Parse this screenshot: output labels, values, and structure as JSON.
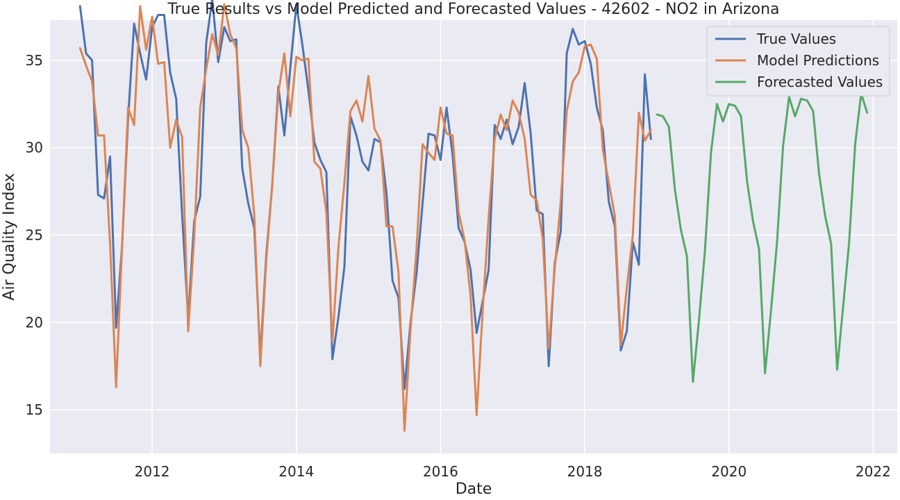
{
  "chart_data": {
    "type": "line",
    "title": "True Results vs Model Predicted and Forecasted Values - 42602 - NO2 in Arizona",
    "xlabel": "Date",
    "ylabel": "Air Quality Index",
    "xlim": [
      "2010-08-01",
      "2022-05-01"
    ],
    "ylim": [
      12.5,
      37.3
    ],
    "xticks": [
      "2012",
      "2014",
      "2016",
      "2018",
      "2020",
      "2022"
    ],
    "yticks": [
      15,
      20,
      25,
      30,
      35
    ],
    "grid": true,
    "legend_position": "top-right",
    "series": [
      {
        "name": "True Values",
        "color": "#4c72b0",
        "start": "2011-01",
        "values": [
          38.1,
          35.4,
          35.0,
          27.3,
          27.1,
          29.5,
          19.7,
          24.4,
          31.7,
          37.1,
          35.4,
          33.9,
          36.9,
          37.6,
          37.6,
          34.3,
          32.8,
          26.1,
          20.2,
          25.8,
          27.2,
          36.0,
          38.5,
          34.9,
          36.9,
          36.1,
          36.2,
          28.8,
          26.8,
          25.4,
          18.0,
          23.9,
          27.9,
          33.5,
          30.7,
          34.6,
          38.2,
          35.9,
          33.3,
          30.3,
          29.3,
          28.6,
          17.9,
          20.3,
          23.2,
          31.8,
          30.7,
          29.2,
          28.7,
          30.5,
          30.3,
          27.4,
          22.4,
          21.4,
          16.2,
          20.0,
          22.8,
          26.8,
          30.8,
          30.7,
          29.3,
          32.3,
          29.6,
          25.4,
          24.6,
          23.0,
          19.4,
          21.2,
          23.0,
          31.3,
          30.5,
          31.6,
          30.2,
          31.2,
          33.7,
          30.8,
          26.4,
          26.2,
          17.5,
          23.4,
          25.2,
          35.4,
          36.8,
          35.9,
          36.1,
          34.8,
          32.3,
          31.0,
          26.9,
          25.5,
          18.4,
          19.5,
          24.6,
          23.3,
          34.2,
          30.5
        ]
      },
      {
        "name": "Model Predictions",
        "color": "#dd8452",
        "start": "2011-01",
        "values": [
          35.7,
          34.7,
          33.8,
          30.7,
          30.7,
          24.5,
          16.3,
          24.4,
          32.3,
          31.3,
          38.1,
          35.6,
          37.5,
          34.8,
          34.9,
          30.0,
          31.6,
          30.6,
          19.5,
          24.9,
          32.3,
          34.5,
          36.5,
          35.3,
          38.2,
          36.5,
          35.7,
          31.0,
          30.0,
          26.1,
          17.5,
          23.6,
          28.0,
          33.1,
          35.4,
          31.8,
          35.2,
          35.0,
          35.1,
          29.2,
          28.8,
          26.3,
          18.9,
          24.3,
          28.0,
          32.1,
          32.7,
          31.5,
          34.1,
          31.1,
          30.4,
          25.5,
          25.5,
          22.9,
          13.8,
          19.6,
          24.2,
          30.2,
          29.7,
          29.3,
          32.3,
          30.8,
          30.7,
          26.3,
          24.7,
          21.5,
          14.7,
          20.6,
          26.0,
          30.5,
          31.9,
          31.0,
          32.7,
          32.0,
          30.5,
          27.3,
          27.0,
          24.8,
          18.5,
          23.1,
          26.9,
          32.1,
          33.8,
          34.3,
          35.8,
          35.9,
          35.1,
          29.9,
          28.0,
          26.1,
          18.7,
          22.0,
          25.0,
          32.0,
          30.4,
          31.0
        ]
      },
      {
        "name": "Forecasted Values",
        "color": "#55a868",
        "start": "2019-01",
        "values": [
          31.9,
          31.8,
          31.2,
          27.6,
          25.3,
          23.8,
          16.6,
          20.1,
          24.1,
          29.7,
          32.5,
          31.5,
          32.5,
          32.4,
          31.8,
          28.1,
          25.8,
          24.2,
          17.1,
          20.7,
          24.6,
          30.1,
          32.9,
          31.8,
          32.8,
          32.7,
          32.1,
          28.5,
          26.1,
          24.5,
          17.3,
          20.9,
          24.6,
          30.2,
          33.1,
          32.0
        ]
      }
    ]
  }
}
